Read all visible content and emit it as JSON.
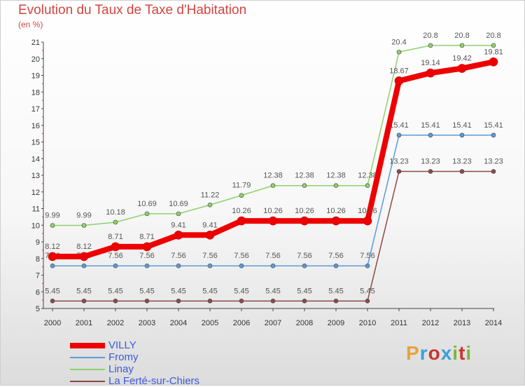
{
  "title": "Evolution du Taux de Taxe d'Habitation",
  "unit": "(en %)",
  "logo": {
    "text": "Proxiti",
    "colors": [
      "#e8a33a",
      "#3aa0d8",
      "#cc3333",
      "#3aa0d8",
      "#7ab834",
      "#cc3333",
      "#7ab834"
    ]
  },
  "chart_data": {
    "type": "line",
    "x": [
      2000,
      2001,
      2002,
      2003,
      2004,
      2005,
      2006,
      2007,
      2008,
      2009,
      2010,
      2011,
      2012,
      2013,
      2014
    ],
    "ylim": [
      5,
      21
    ],
    "yticks": [
      5,
      6,
      7,
      8,
      9,
      10,
      11,
      12,
      13,
      14,
      15,
      16,
      17,
      18,
      19,
      20,
      21
    ],
    "grid": false,
    "legend": "bottom-left",
    "series": [
      {
        "name": "Linay",
        "color": "#8fd16a",
        "width": 1.5,
        "values": [
          9.99,
          9.99,
          10.18,
          10.69,
          10.69,
          11.22,
          11.79,
          12.38,
          12.38,
          12.38,
          12.38,
          20.4,
          20.8,
          20.8,
          20.8
        ],
        "labels": [
          "9.99",
          "9.99",
          "10.18",
          "10.69",
          "10.69",
          "11.22",
          "11.79",
          "12.38",
          "12.38",
          "12.38",
          "12.38",
          "20.4",
          "20.8",
          "20.8",
          "20.8"
        ]
      },
      {
        "name": "Fromy",
        "color": "#5b9bd5",
        "width": 1.5,
        "values": [
          7.56,
          7.56,
          7.56,
          7.56,
          7.56,
          7.56,
          7.56,
          7.56,
          7.56,
          7.56,
          7.56,
          15.41,
          15.41,
          15.41,
          15.41
        ],
        "labels": [
          "7.56",
          "7.56",
          "7.56",
          "7.56",
          "7.56",
          "7.56",
          "7.56",
          "7.56",
          "7.56",
          "7.56",
          "7.56",
          "15.41",
          "15.41",
          "15.41",
          "15.41"
        ]
      },
      {
        "name": "La Ferté-sur-Chiers",
        "color": "#8b4a4a",
        "width": 1.5,
        "values": [
          5.45,
          5.45,
          5.45,
          5.45,
          5.45,
          5.45,
          5.45,
          5.45,
          5.45,
          5.45,
          5.45,
          13.23,
          13.23,
          13.23,
          13.23
        ],
        "labels": [
          "5.45",
          "5.45",
          "5.45",
          "5.45",
          "5.45",
          "5.45",
          "5.45",
          "5.45",
          "5.45",
          "5.45",
          "5.45",
          "13.23",
          "13.23",
          "13.23",
          "13.23"
        ]
      },
      {
        "name": "VILLY",
        "color": "#ee0000",
        "width": 8,
        "values": [
          8.12,
          8.12,
          8.71,
          8.71,
          9.41,
          9.41,
          10.26,
          10.26,
          10.26,
          10.26,
          10.26,
          18.67,
          19.14,
          19.42,
          19.81
        ],
        "labels": [
          "8.12",
          "8.12",
          "8.71",
          "8.71",
          "9.41",
          "9.41",
          "10.26",
          "10.26",
          "10.26",
          "10.26",
          "10.26",
          "18.67",
          "19.14",
          "19.42",
          "19.81"
        ]
      }
    ],
    "legend_order": [
      "VILLY",
      "Fromy",
      "Linay",
      "La Ferté-sur-Chiers"
    ]
  }
}
